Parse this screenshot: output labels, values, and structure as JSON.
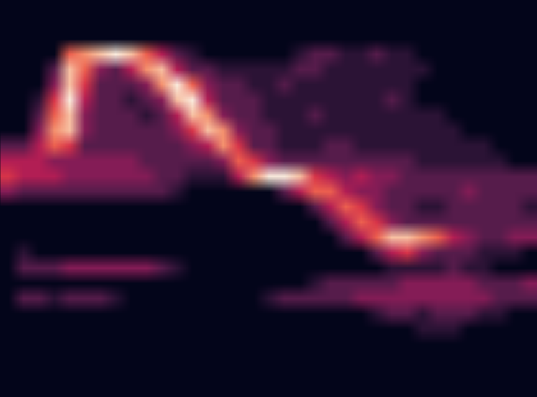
{
  "chart_data": {
    "type": "heatmap",
    "tick_labels": false,
    "color_range": [
      0,
      9
    ],
    "cells": [
      [
        0,
        0,
        0,
        0,
        0,
        0,
        0,
        0,
        0,
        0,
        0,
        0,
        0,
        0,
        0,
        0,
        0,
        0,
        0,
        0,
        0,
        0,
        0,
        0,
        0,
        0,
        0,
        0,
        0,
        0,
        0,
        0,
        0,
        0,
        0
      ],
      [
        0,
        0,
        0,
        0,
        0,
        0,
        0,
        0,
        0,
        0,
        0,
        0,
        0,
        0,
        0,
        0,
        0,
        0,
        0,
        0,
        0,
        0,
        0,
        0,
        0,
        0,
        0,
        0,
        0,
        0,
        0,
        0,
        0,
        0,
        0
      ],
      [
        0,
        0,
        0,
        0,
        0,
        0,
        0,
        0,
        0,
        0,
        0,
        0,
        0,
        0,
        0,
        0,
        0,
        0,
        0,
        0,
        0,
        0,
        0,
        0,
        0,
        0,
        0,
        0,
        0,
        0,
        0,
        0,
        0,
        0,
        0
      ],
      [
        0,
        0,
        0,
        0,
        6,
        7,
        8,
        9,
        8,
        6,
        4,
        2,
        1,
        0,
        0,
        0,
        0,
        0,
        0,
        1,
        2,
        2,
        1,
        1,
        2,
        1,
        1,
        0,
        0,
        0,
        0,
        0,
        0,
        0,
        0
      ],
      [
        0,
        0,
        0,
        2,
        8,
        6,
        3,
        2,
        4,
        7,
        8,
        4,
        2,
        2,
        1,
        1,
        1,
        1,
        1,
        2,
        2,
        1,
        1,
        1,
        1,
        1,
        1,
        1,
        0,
        0,
        0,
        0,
        0,
        0,
        0
      ],
      [
        0,
        0,
        0,
        3,
        8,
        5,
        2,
        2,
        2,
        3,
        7,
        9,
        6,
        3,
        2,
        2,
        1,
        1,
        2,
        1,
        1,
        1,
        1,
        1,
        1,
        1,
        1,
        0,
        0,
        0,
        0,
        0,
        0,
        0,
        0
      ],
      [
        0,
        0,
        1,
        5,
        9,
        4,
        2,
        2,
        1,
        2,
        3,
        8,
        9,
        4,
        2,
        2,
        2,
        1,
        1,
        1,
        1,
        1,
        1,
        1,
        1,
        2,
        1,
        0,
        0,
        0,
        0,
        0,
        0,
        0,
        0
      ],
      [
        0,
        0,
        2,
        6,
        8,
        3,
        2,
        2,
        2,
        1,
        2,
        4,
        8,
        7,
        3,
        2,
        2,
        1,
        1,
        1,
        2,
        1,
        1,
        1,
        1,
        1,
        1,
        1,
        1,
        0,
        0,
        0,
        0,
        0,
        0
      ],
      [
        0,
        0,
        3,
        7,
        8,
        3,
        2,
        2,
        2,
        2,
        2,
        3,
        5,
        8,
        7,
        3,
        2,
        2,
        1,
        1,
        1,
        1,
        1,
        1,
        1,
        1,
        1,
        1,
        1,
        1,
        0,
        0,
        0,
        0,
        0
      ],
      [
        2,
        2,
        4,
        6,
        5,
        2,
        2,
        2,
        2,
        2,
        2,
        2,
        3,
        4,
        7,
        5,
        2,
        2,
        1,
        1,
        1,
        2,
        2,
        1,
        1,
        1,
        1,
        1,
        1,
        1,
        1,
        1,
        0,
        0,
        0
      ],
      [
        4,
        4,
        4,
        3,
        3,
        3,
        3,
        3,
        3,
        2,
        2,
        2,
        2,
        2,
        3,
        6,
        5,
        3,
        2,
        2,
        2,
        2,
        2,
        2,
        2,
        2,
        2,
        1,
        1,
        1,
        1,
        1,
        1,
        0,
        0
      ],
      [
        5,
        4,
        4,
        4,
        3,
        3,
        3,
        3,
        3,
        3,
        2,
        2,
        1,
        1,
        1,
        4,
        7,
        9,
        9,
        8,
        5,
        4,
        3,
        4,
        3,
        3,
        2,
        2,
        2,
        2,
        2,
        2,
        2,
        2,
        2
      ],
      [
        3,
        2,
        2,
        2,
        2,
        2,
        2,
        2,
        2,
        2,
        2,
        1,
        0,
        0,
        0,
        0,
        0,
        0,
        2,
        4,
        6,
        6,
        4,
        3,
        3,
        2,
        2,
        2,
        2,
        2,
        3,
        2,
        2,
        2,
        2
      ],
      [
        0,
        0,
        0,
        0,
        0,
        0,
        0,
        0,
        0,
        0,
        0,
        0,
        0,
        0,
        0,
        0,
        0,
        0,
        0,
        0,
        2,
        4,
        6,
        5,
        3,
        2,
        2,
        1,
        1,
        2,
        2,
        2,
        2,
        2,
        1
      ],
      [
        0,
        0,
        0,
        0,
        0,
        0,
        0,
        0,
        0,
        0,
        0,
        0,
        0,
        0,
        0,
        0,
        0,
        0,
        0,
        0,
        0,
        2,
        4,
        6,
        5,
        3,
        2,
        2,
        2,
        2,
        2,
        2,
        2,
        2,
        2
      ],
      [
        0,
        0,
        0,
        0,
        0,
        0,
        0,
        0,
        0,
        0,
        0,
        0,
        0,
        0,
        0,
        0,
        0,
        0,
        0,
        0,
        0,
        0,
        2,
        4,
        6,
        8,
        8,
        7,
        6,
        4,
        3,
        2,
        2,
        3,
        3
      ],
      [
        0,
        1,
        0,
        0,
        0,
        0,
        0,
        0,
        0,
        0,
        0,
        0,
        0,
        0,
        0,
        0,
        0,
        0,
        0,
        0,
        0,
        0,
        0,
        0,
        2,
        4,
        5,
        3,
        2,
        2,
        2,
        1,
        1,
        1,
        0
      ],
      [
        0,
        2,
        2,
        2,
        3,
        3,
        3,
        3,
        3,
        3,
        2,
        1,
        0,
        0,
        0,
        0,
        0,
        0,
        0,
        0,
        0,
        0,
        0,
        0,
        0,
        1,
        1,
        1,
        1,
        2,
        1,
        1,
        0,
        0,
        0
      ],
      [
        0,
        0,
        0,
        0,
        0,
        0,
        0,
        0,
        0,
        0,
        0,
        0,
        0,
        0,
        0,
        0,
        0,
        0,
        0,
        0,
        1,
        2,
        2,
        2,
        2,
        2,
        3,
        3,
        3,
        3,
        3,
        2,
        2,
        2,
        3
      ],
      [
        0,
        2,
        2,
        1,
        2,
        2,
        2,
        1,
        0,
        0,
        0,
        0,
        0,
        0,
        0,
        0,
        0,
        1,
        2,
        2,
        2,
        2,
        2,
        3,
        3,
        3,
        3,
        3,
        3,
        3,
        3,
        3,
        2,
        2,
        2
      ],
      [
        0,
        0,
        0,
        0,
        0,
        0,
        0,
        0,
        0,
        0,
        0,
        0,
        0,
        0,
        0,
        0,
        0,
        0,
        0,
        0,
        0,
        0,
        0,
        0,
        1,
        2,
        2,
        1,
        2,
        2,
        2,
        1,
        1,
        0,
        0
      ],
      [
        0,
        0,
        0,
        0,
        0,
        0,
        0,
        0,
        0,
        0,
        0,
        0,
        0,
        0,
        0,
        0,
        0,
        0,
        0,
        0,
        0,
        0,
        0,
        0,
        0,
        0,
        0,
        1,
        1,
        1,
        0,
        0,
        0,
        0,
        0
      ],
      [
        0,
        0,
        0,
        0,
        0,
        0,
        0,
        0,
        0,
        0,
        0,
        0,
        0,
        0,
        0,
        0,
        0,
        0,
        0,
        0,
        0,
        0,
        0,
        0,
        0,
        0,
        0,
        0,
        0,
        0,
        0,
        0,
        0,
        0,
        0
      ],
      [
        0,
        0,
        0,
        0,
        0,
        0,
        0,
        0,
        0,
        0,
        0,
        0,
        0,
        0,
        0,
        0,
        0,
        0,
        0,
        0,
        0,
        0,
        0,
        0,
        0,
        0,
        0,
        0,
        0,
        0,
        0,
        0,
        0,
        0,
        0
      ],
      [
        0,
        0,
        0,
        0,
        0,
        0,
        0,
        0,
        0,
        0,
        0,
        0,
        0,
        0,
        0,
        0,
        0,
        0,
        0,
        0,
        0,
        0,
        0,
        0,
        0,
        0,
        0,
        0,
        0,
        0,
        0,
        0,
        0,
        0,
        0
      ],
      [
        0,
        0,
        0,
        0,
        0,
        0,
        0,
        0,
        0,
        0,
        0,
        0,
        0,
        0,
        0,
        0,
        0,
        0,
        0,
        0,
        0,
        0,
        0,
        0,
        0,
        0,
        0,
        0,
        0,
        0,
        0,
        0,
        0,
        0,
        0
      ]
    ]
  }
}
